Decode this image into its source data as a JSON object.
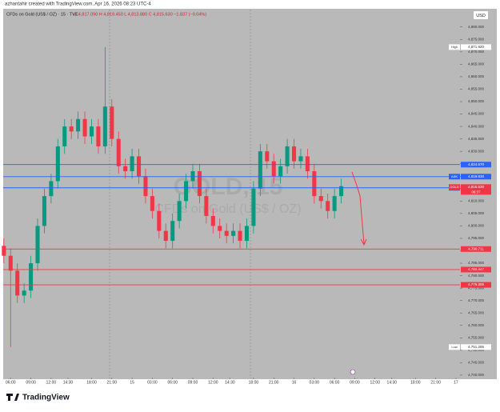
{
  "header": {
    "credit": "azhantahir created with TradingView.com, Apr 16, 2026 08:23 UTC-4",
    "symbol": "CFDs on Gold (US$ / OZ) · 15 · TVC",
    "ohlc": "O 4,817.090  H 4,819.450  L 4,813.880  C 4,815.630  −1.837 (−0.04%)"
  },
  "footer": {
    "brand": "TradingView"
  },
  "chart_data": {
    "type": "candlestick",
    "currency": "USD",
    "watermark": "GOLD, 15",
    "watermark_sub": "CFDs on Gold (US$ / OZ)",
    "up_color": "#089981",
    "down_color": "#f23645",
    "background": "#b9b9b9",
    "x": [
      -1,
      0,
      1,
      2,
      3,
      4,
      5,
      6,
      7,
      8,
      9,
      10,
      11,
      12,
      13,
      14,
      15,
      16,
      17,
      18,
      19,
      20,
      21,
      22,
      23,
      24,
      25,
      26,
      27,
      28,
      29,
      30,
      31,
      32,
      33,
      34,
      35,
      36,
      37,
      38,
      39,
      40,
      41,
      42,
      43,
      44,
      45,
      46,
      47,
      48,
      49
    ],
    "open": [
      4792,
      4788,
      4782,
      4772,
      4774,
      4785,
      4800,
      4812,
      4818,
      4832,
      4840,
      4838,
      4843,
      4836,
      4840,
      4832,
      4848,
      4835,
      4824,
      4822,
      4828,
      4820,
      4812,
      4806,
      4798,
      4794,
      4802,
      4810,
      4818,
      4822,
      4812,
      4804,
      4800,
      4798,
      4796,
      4798,
      4794,
      4800,
      4815,
      4830,
      4826,
      4820,
      4824,
      4832,
      4826,
      4828,
      4822,
      4812,
      4810,
      4806,
      4812
    ],
    "high": [
      4795,
      4791,
      4785,
      4777,
      4788,
      4803,
      4815,
      4821,
      4835,
      4843,
      4843,
      4846,
      4846,
      4843,
      4843,
      4871.92,
      4851,
      4838,
      4827,
      4831,
      4831,
      4823,
      4815,
      4809,
      4801,
      4805,
      4813,
      4821,
      4825,
      4825,
      4815,
      4807,
      4803,
      4801,
      4801,
      4801,
      4803,
      4818,
      4833,
      4833,
      4829,
      4827,
      4835,
      4835,
      4831,
      4831,
      4825,
      4815,
      4813,
      4815,
      4819
    ],
    "low": [
      4785,
      4751.285,
      4769,
      4769,
      4771,
      4782,
      4797,
      4809,
      4815,
      4829,
      4835,
      4835,
      4833,
      4833,
      4829,
      4829,
      4832,
      4821,
      4819,
      4819,
      4817,
      4809,
      4803,
      4795,
      4791,
      4791,
      4799,
      4807,
      4815,
      4809,
      4801,
      4797,
      4795,
      4793,
      4793,
      4791,
      4791,
      4797,
      4812,
      4823,
      4817,
      4817,
      4821,
      4823,
      4823,
      4819,
      4809,
      4807,
      4803,
      4803,
      4809
    ],
    "close": [
      4788,
      4782,
      4772,
      4774,
      4785,
      4800,
      4812,
      4818,
      4832,
      4840,
      4838,
      4843,
      4836,
      4840,
      4832,
      4848,
      4835,
      4824,
      4822,
      4828,
      4820,
      4812,
      4806,
      4798,
      4794,
      4802,
      4810,
      4818,
      4822,
      4812,
      4804,
      4800,
      4798,
      4796,
      4798,
      4794,
      4800,
      4815,
      4830,
      4826,
      4820,
      4824,
      4832,
      4826,
      4828,
      4822,
      4812,
      4810,
      4806,
      4812,
      4816
    ],
    "xlim": [
      -1.1,
      66.6
    ],
    "xticks": [
      {
        "value": 0,
        "label": "06:00"
      },
      {
        "value": 3,
        "label": "09:00"
      },
      {
        "value": 6,
        "label": "12:00"
      },
      {
        "value": 8.5,
        "label": "14:30"
      },
      {
        "value": 12,
        "label": "18:00"
      },
      {
        "value": 15,
        "label": "21:00"
      },
      {
        "value": 18,
        "label": "15"
      },
      {
        "value": 21,
        "label": "03:00"
      },
      {
        "value": 24,
        "label": "06:00"
      },
      {
        "value": 27,
        "label": "09:00"
      },
      {
        "value": 30,
        "label": "12:00"
      },
      {
        "value": 32.5,
        "label": "14:30"
      },
      {
        "value": 36,
        "label": "18:00"
      },
      {
        "value": 39,
        "label": "21:00"
      },
      {
        "value": 42,
        "label": "16"
      },
      {
        "value": 45,
        "label": "03:00"
      },
      {
        "value": 48,
        "label": "06:00"
      },
      {
        "value": 51,
        "label": "09:00"
      },
      {
        "value": 54,
        "label": "12:00"
      },
      {
        "value": 56.5,
        "label": "14:30"
      },
      {
        "value": 60,
        "label": "18:00"
      },
      {
        "value": 63,
        "label": "21:00"
      },
      {
        "value": 66,
        "label": "17"
      }
    ],
    "ylim": [
      4739,
      4887
    ],
    "yticks": [
      {
        "value": 4740,
        "label": "4,740.000"
      },
      {
        "value": 4745,
        "label": "4,745.000"
      },
      {
        "value": 4750,
        "label": "4,750.000"
      },
      {
        "value": 4755,
        "label": "4,755.000"
      },
      {
        "value": 4760,
        "label": "4,760.000"
      },
      {
        "value": 4765,
        "label": "4,765.000"
      },
      {
        "value": 4770,
        "label": "4,770.000"
      },
      {
        "value": 4775,
        "label": "4,775.000"
      },
      {
        "value": 4780,
        "label": "4,780.000"
      },
      {
        "value": 4785,
        "label": "4,785.000"
      },
      {
        "value": 4790,
        "label": "4,790.000"
      },
      {
        "value": 4795,
        "label": "4,795.000"
      },
      {
        "value": 4800,
        "label": "4,800.000"
      },
      {
        "value": 4805,
        "label": "4,805.000"
      },
      {
        "value": 4810,
        "label": "4,810.000"
      },
      {
        "value": 4815,
        "label": "4,815.000"
      },
      {
        "value": 4820,
        "label": "4,820.000"
      },
      {
        "value": 4825,
        "label": "4,825.000"
      },
      {
        "value": 4830,
        "label": "4,830.000"
      },
      {
        "value": 4835,
        "label": "4,835.000"
      },
      {
        "value": 4840,
        "label": "4,840.000"
      },
      {
        "value": 4845,
        "label": "4,845.000"
      },
      {
        "value": 4850,
        "label": "4,850.000"
      },
      {
        "value": 4855,
        "label": "4,855.000"
      },
      {
        "value": 4860,
        "label": "4,860.000"
      },
      {
        "value": 4865,
        "label": "4,865.000"
      },
      {
        "value": 4870,
        "label": "4,870.000"
      },
      {
        "value": 4875,
        "label": "4,875.000"
      },
      {
        "value": 4880,
        "label": "4,880.000"
      }
    ],
    "levels": [
      {
        "value": 4824.67,
        "label": "4,824.670",
        "color": "#2962ff"
      },
      {
        "value": 4819.83,
        "label": "4,819.830",
        "color": "#2962ff",
        "name": "ASK"
      },
      {
        "value": 4815.334,
        "label": "4,815.334",
        "color": "#2962ff",
        "name": "BID"
      },
      {
        "value": 4790.711,
        "label": "4,790.711",
        "color": "#f23645"
      },
      {
        "value": 4782.447,
        "label": "4,782.447",
        "color": "#f23645"
      },
      {
        "value": 4776.306,
        "label": "4,776.306",
        "color": "#f23645"
      }
    ],
    "last": {
      "name": "GOLD",
      "value": 4815.63,
      "label": "4,815.630",
      "countdown": "06:37",
      "color": "#f23645"
    },
    "high_mark": {
      "name": "High",
      "value": 4871.92,
      "label": "4,871.920"
    },
    "low_mark": {
      "name": "Low",
      "value": 4751.285,
      "label": "4,751.285"
    }
  }
}
